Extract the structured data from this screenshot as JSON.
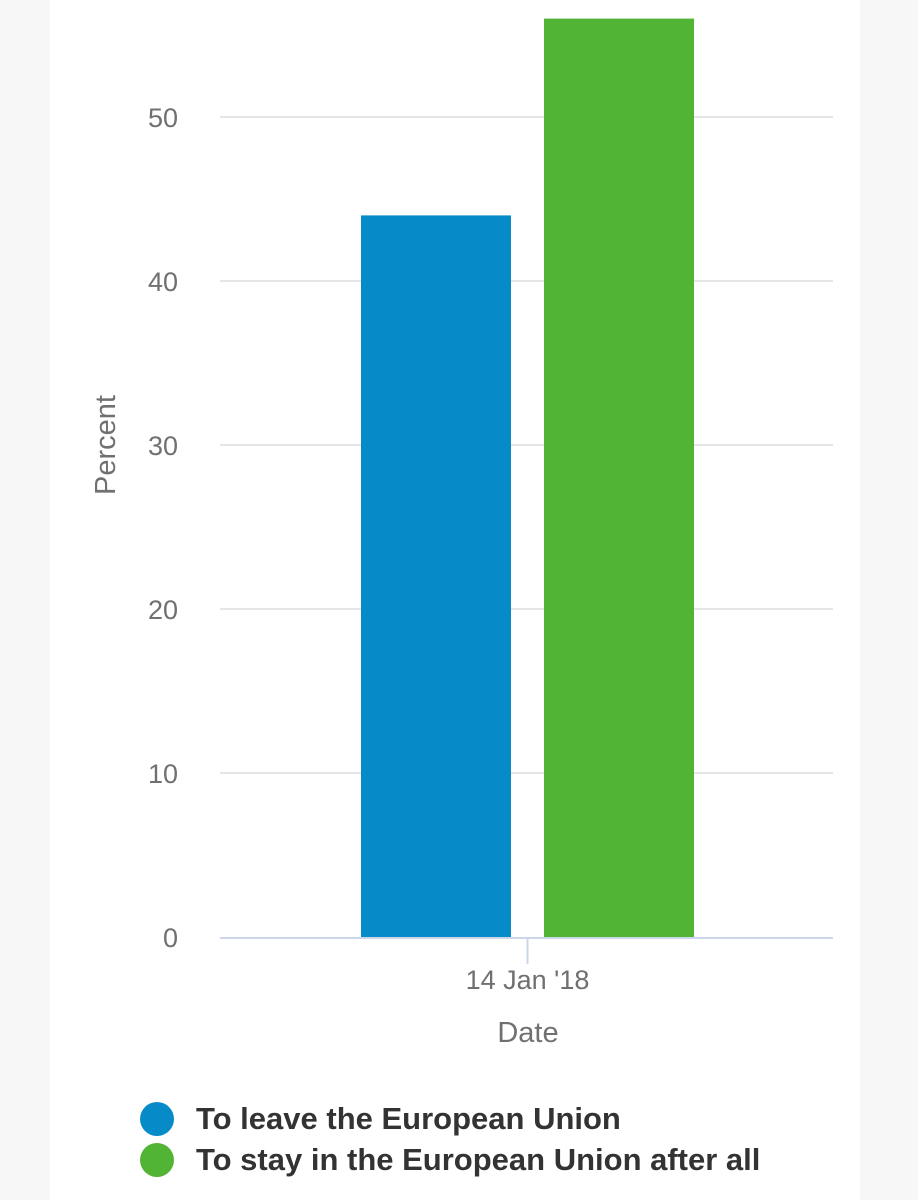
{
  "chart_data": {
    "type": "bar",
    "categories": [
      "14 Jan '18"
    ],
    "series": [
      {
        "name": "To leave the European Union",
        "values": [
          44
        ],
        "color": "#078ac8"
      },
      {
        "name": "To stay in the European Union after all",
        "values": [
          56
        ],
        "color": "#52b435"
      }
    ],
    "xlabel": "Date",
    "ylabel": "Percent",
    "ylim": [
      0,
      60
    ],
    "yticks": [
      0,
      10,
      20,
      30,
      40,
      50
    ],
    "grid": true,
    "legend_position": "bottom"
  }
}
